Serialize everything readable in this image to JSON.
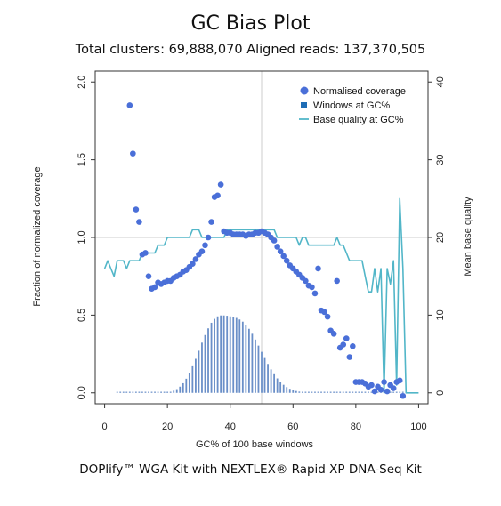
{
  "colors": {
    "coverage": "#4a6fd8",
    "windows": "#6a8fc8",
    "quality": "#52b6c8",
    "gridline": "#cccccc",
    "frame": "#333333"
  },
  "caption": "DOPlify™ WGA Kit with NEXTLEX® Rapid XP DNA-Seq Kit",
  "chart_data": {
    "type": "scatter",
    "title": "GC Bias Plot",
    "subtitle": "Total clusters: 69,888,070 Aligned reads: 137,370,505",
    "xlabel": "GC% of 100 base windows",
    "ylabel": "Fraction of normalized coverage",
    "y2label": "Mean base quality",
    "xlim": [
      -3,
      103
    ],
    "ylim": [
      -0.07,
      2.07
    ],
    "y2lim": [
      -1.4,
      41.4
    ],
    "xticks": [
      0,
      20,
      40,
      60,
      80,
      100
    ],
    "yticks": [
      0.0,
      0.5,
      1.0,
      1.5,
      2.0
    ],
    "y2ticks": [
      0,
      10,
      20,
      30,
      40
    ],
    "xtick_labels": [
      "0",
      "20",
      "40",
      "60",
      "80",
      "100"
    ],
    "ytick_labels": [
      "0.0",
      "0.5",
      "1.0",
      "1.5",
      "2.0"
    ],
    "y2tick_labels": [
      "0",
      "10",
      "20",
      "30",
      "40"
    ],
    "reference_lines": {
      "x": 50,
      "y": 1.0
    },
    "legend": {
      "position": "top-right",
      "entries": [
        "Normalised coverage",
        "Windows at GC%",
        "Base quality at GC%"
      ]
    },
    "series": [
      {
        "name": "Normalised coverage",
        "kind": "scatter",
        "axis": "left",
        "x": [
          8,
          9,
          10,
          11,
          12,
          13,
          14,
          15,
          16,
          17,
          18,
          19,
          20,
          21,
          22,
          23,
          24,
          25,
          26,
          27,
          28,
          29,
          30,
          31,
          32,
          33,
          34,
          35,
          36,
          37,
          38,
          39,
          40,
          41,
          42,
          43,
          44,
          45,
          46,
          47,
          48,
          49,
          50,
          51,
          52,
          53,
          54,
          55,
          56,
          57,
          58,
          59,
          60,
          61,
          62,
          63,
          64,
          65,
          66,
          67,
          68,
          69,
          70,
          71,
          72,
          73,
          74,
          75,
          76,
          77,
          78,
          79,
          80,
          81,
          82,
          83,
          84,
          85,
          86,
          87,
          88,
          89,
          90,
          91,
          92,
          93,
          94,
          95
        ],
        "y": [
          1.85,
          1.54,
          1.18,
          1.1,
          0.89,
          0.9,
          0.75,
          0.67,
          0.68,
          0.71,
          0.7,
          0.71,
          0.72,
          0.72,
          0.74,
          0.75,
          0.76,
          0.78,
          0.79,
          0.81,
          0.83,
          0.86,
          0.89,
          0.91,
          0.95,
          1.0,
          1.1,
          1.26,
          1.27,
          1.34,
          1.04,
          1.03,
          1.03,
          1.02,
          1.02,
          1.02,
          1.02,
          1.01,
          1.02,
          1.02,
          1.03,
          1.03,
          1.04,
          1.03,
          1.02,
          1.0,
          0.98,
          0.94,
          0.91,
          0.88,
          0.85,
          0.82,
          0.8,
          0.78,
          0.76,
          0.74,
          0.72,
          0.69,
          0.68,
          0.64,
          0.8,
          0.53,
          0.52,
          0.49,
          0.4,
          0.38,
          0.72,
          0.29,
          0.31,
          0.35,
          0.23,
          0.3,
          0.07,
          0.07,
          0.07,
          0.06,
          0.04,
          0.05,
          0.01,
          0.04,
          0.02,
          0.07,
          0.01,
          0.05,
          0.03,
          0.07,
          0.08,
          -0.02
        ]
      },
      {
        "name": "Windows at GC%",
        "kind": "bar",
        "axis": "left",
        "x": [
          4,
          5,
          6,
          7,
          8,
          9,
          10,
          11,
          12,
          13,
          14,
          15,
          16,
          17,
          18,
          19,
          20,
          21,
          22,
          23,
          24,
          25,
          26,
          27,
          28,
          29,
          30,
          31,
          32,
          33,
          34,
          35,
          36,
          37,
          38,
          39,
          40,
          41,
          42,
          43,
          44,
          45,
          46,
          47,
          48,
          49,
          50,
          51,
          52,
          53,
          54,
          55,
          56,
          57,
          58,
          59,
          60,
          61,
          62,
          63,
          64,
          65,
          66,
          67,
          68,
          69,
          70,
          71,
          72,
          73,
          74,
          75,
          76,
          77,
          78,
          79,
          80,
          81,
          82,
          83,
          84,
          85,
          86,
          87,
          88,
          89,
          90,
          91,
          92,
          93,
          94,
          95
        ],
        "y": [
          0,
          0,
          0,
          0,
          0,
          0,
          0,
          0,
          0,
          0,
          0,
          0,
          0,
          0,
          0,
          0.001,
          0.003,
          0.007,
          0.014,
          0.024,
          0.04,
          0.062,
          0.091,
          0.128,
          0.171,
          0.219,
          0.271,
          0.323,
          0.372,
          0.415,
          0.451,
          0.476,
          0.492,
          0.498,
          0.498,
          0.496,
          0.492,
          0.488,
          0.482,
          0.472,
          0.458,
          0.438,
          0.412,
          0.38,
          0.343,
          0.304,
          0.264,
          0.224,
          0.186,
          0.151,
          0.12,
          0.093,
          0.07,
          0.052,
          0.037,
          0.026,
          0.018,
          0.012,
          0.008,
          0.005,
          0.003,
          0.002,
          0.001,
          0,
          0,
          0,
          0,
          0,
          0,
          0,
          0,
          0,
          0,
          0,
          0,
          0,
          0,
          0,
          0,
          0,
          0,
          0,
          0,
          0,
          0,
          0,
          0,
          0,
          0,
          0,
          0,
          0
        ]
      },
      {
        "name": "Base quality at GC%",
        "kind": "line",
        "axis": "right",
        "x": [
          0,
          1,
          2,
          3,
          4,
          5,
          6,
          7,
          8,
          9,
          10,
          11,
          12,
          13,
          14,
          15,
          16,
          17,
          18,
          19,
          20,
          21,
          22,
          23,
          24,
          25,
          26,
          27,
          28,
          29,
          30,
          31,
          32,
          33,
          34,
          35,
          36,
          37,
          38,
          39,
          40,
          41,
          42,
          43,
          44,
          45,
          46,
          47,
          48,
          49,
          50,
          51,
          52,
          53,
          54,
          55,
          56,
          57,
          58,
          59,
          60,
          61,
          62,
          63,
          64,
          65,
          66,
          67,
          68,
          69,
          70,
          71,
          72,
          73,
          74,
          75,
          76,
          77,
          78,
          79,
          80,
          81,
          82,
          83,
          84,
          85,
          86,
          87,
          88,
          89,
          90,
          91,
          92,
          93,
          94,
          95,
          96,
          97,
          98,
          99,
          100
        ],
        "y": [
          16,
          17,
          16,
          15,
          17,
          17,
          17,
          16,
          17,
          17,
          17,
          17,
          18,
          18,
          18,
          18,
          18,
          19,
          19,
          19,
          20,
          20,
          20,
          20,
          20,
          20,
          20,
          20,
          21,
          21,
          21,
          20,
          20,
          20,
          20,
          20,
          20,
          20,
          20,
          21,
          21,
          21,
          21,
          21,
          21,
          21,
          21,
          21,
          21,
          21,
          21,
          21,
          21,
          21,
          21,
          20,
          20,
          20,
          20,
          20,
          20,
          20,
          19,
          20,
          20,
          19,
          19,
          19,
          19,
          19,
          19,
          19,
          19,
          19,
          20,
          19,
          19,
          18,
          17,
          17,
          17,
          17,
          17,
          15,
          13,
          13,
          16,
          13,
          16,
          0,
          16,
          14,
          17,
          1,
          25,
          16,
          0,
          0,
          0,
          0,
          0
        ]
      }
    ]
  }
}
